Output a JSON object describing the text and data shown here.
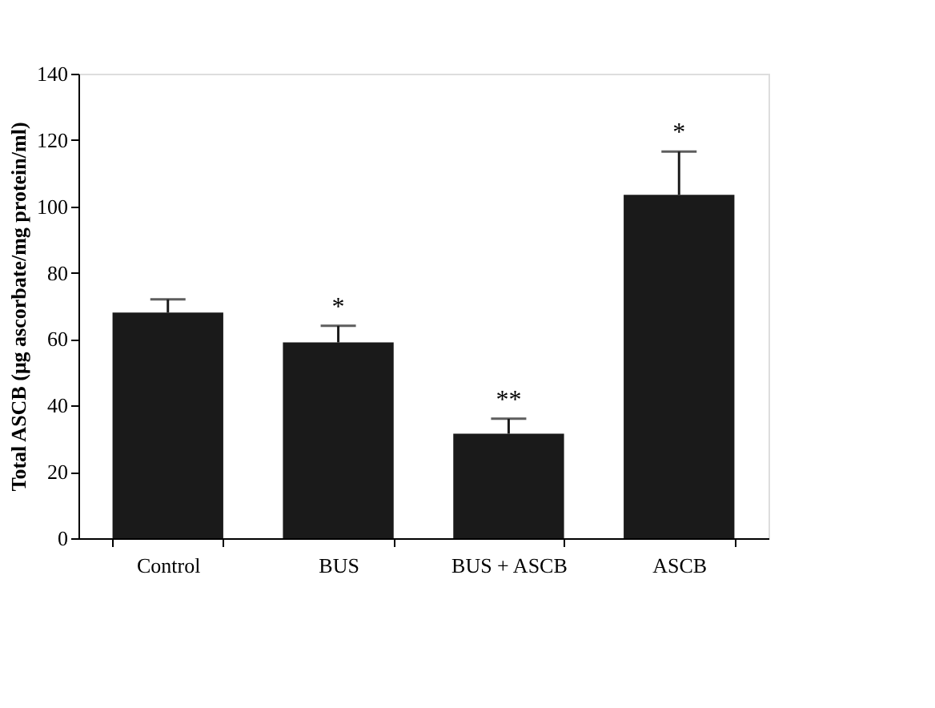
{
  "chart_data": {
    "type": "bar",
    "ylabel": "Total ASCB  (μg ascorbate/mg protein/ml)",
    "categories": [
      "Control",
      "BUS",
      "BUS + ASCB",
      "ASCB"
    ],
    "values": [
      68,
      59,
      31.5,
      103.5
    ],
    "errors": [
      [
        68,
        72
      ],
      [
        59,
        64
      ],
      [
        31.5,
        36
      ],
      [
        103.5,
        116.5
      ]
    ],
    "color": "#1a1a1a",
    "ylim": [
      0,
      140
    ],
    "yticks": [
      0,
      20,
      40,
      60,
      80,
      100,
      120,
      140
    ],
    "grid": false,
    "annotations": [
      {
        "text": "*",
        "x": "BUS",
        "y": 64
      },
      {
        "text": "**",
        "x": "BUS + ASCB",
        "y": 36
      },
      {
        "text": "*",
        "x": "ASCB",
        "y": 116.5
      }
    ]
  }
}
